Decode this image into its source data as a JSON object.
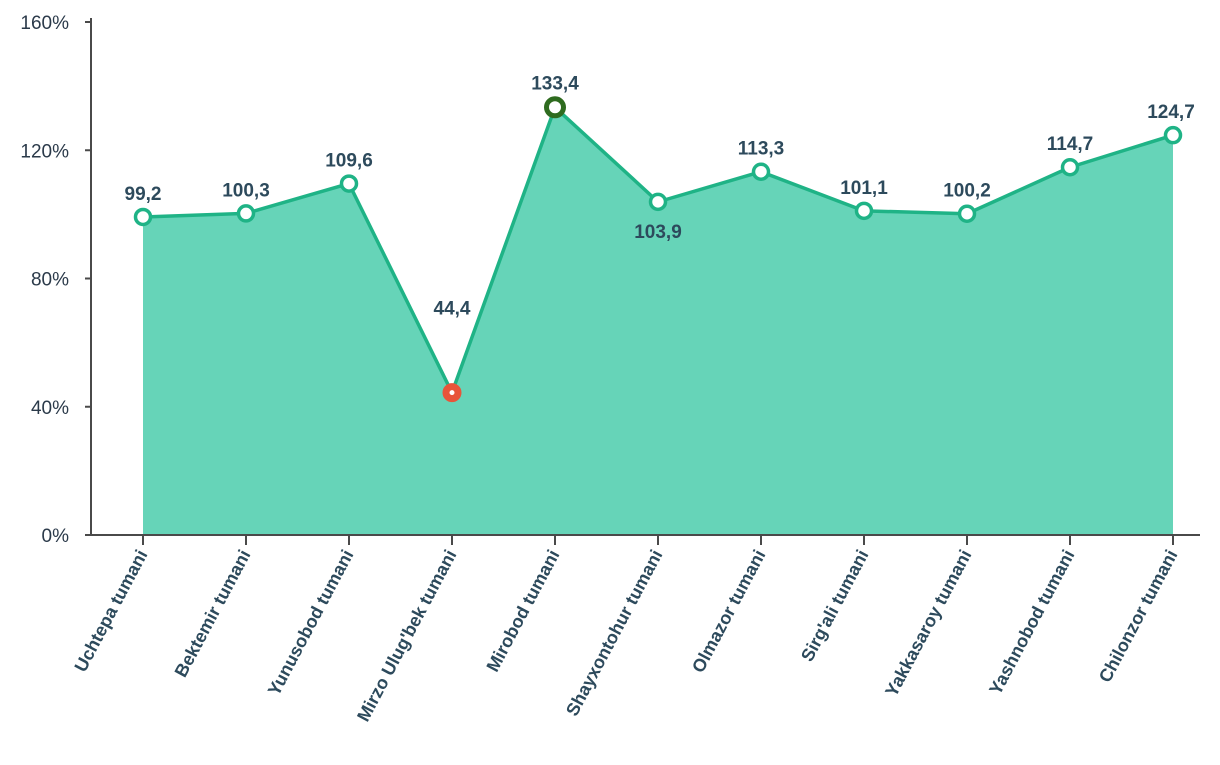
{
  "chart_data": {
    "type": "area",
    "categories": [
      "Uchtepa tumani",
      "Bektemir tumani",
      "Yunusobod tumani",
      "Mirzo Ulug'bek tumani",
      "Mirobod tumani",
      "Shayxontohur tumani",
      "Olmazor tumani",
      "Sirg'ali tumani",
      "Yakkasaroy tumani",
      "Yashnobod tumani",
      "Chilonzor tumani"
    ],
    "values": [
      99.2,
      100.3,
      109.6,
      44.4,
      133.4,
      103.9,
      113.3,
      101.1,
      100.2,
      114.7,
      124.7
    ],
    "value_labels": [
      "99,2",
      "100,3",
      "109,6",
      "44,4",
      "133,4",
      "103,9",
      "113,3",
      "101,1",
      "100,2",
      "114,7",
      "124,7"
    ],
    "ylim": [
      0,
      160
    ],
    "yticks": [
      0,
      40,
      80,
      120,
      160
    ],
    "ytick_labels": [
      "0%",
      "40%",
      "80%",
      "120%",
      "160%"
    ],
    "grid": false,
    "min_index": 3,
    "max_index": 4,
    "colors": {
      "area_fill": "#66d4b8",
      "line": "#1fb386",
      "axis": "#4a4a4a",
      "label": "#2d4a5c",
      "min_marker": "#e8553a",
      "min_label": "#d23a3a",
      "max_marker": "#2e6b1f"
    }
  }
}
